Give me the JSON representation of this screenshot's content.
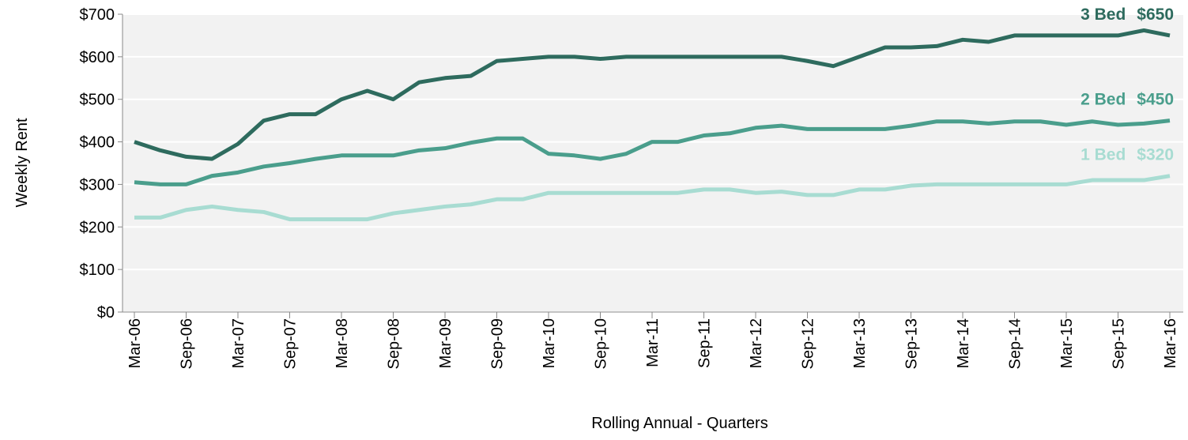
{
  "chart_data": {
    "type": "line",
    "x_label": "Rolling Annual - Quarters",
    "y_label": "Weekly Rent",
    "categories": [
      "Mar-06",
      null,
      "Sep-06",
      null,
      "Mar-07",
      null,
      "Sep-07",
      null,
      "Mar-08",
      null,
      "Sep-08",
      null,
      "Mar-09",
      null,
      "Sep-09",
      null,
      "Mar-10",
      null,
      "Sep-10",
      null,
      "Mar-11",
      null,
      "Sep-11",
      null,
      "Mar-12",
      null,
      "Sep-12",
      null,
      "Mar-13",
      null,
      "Sep-13",
      null,
      "Mar-14",
      null,
      "Sep-14",
      null,
      "Mar-15",
      null,
      "Sep-15",
      null,
      "Mar-16"
    ],
    "series": [
      {
        "name": "3 Bed",
        "color": "#2e6b5e",
        "values": [
          400,
          380,
          365,
          360,
          395,
          450,
          465,
          465,
          500,
          520,
          500,
          540,
          550,
          555,
          590,
          595,
          600,
          600,
          595,
          600,
          600,
          600,
          600,
          600,
          600,
          600,
          590,
          578,
          600,
          622,
          622,
          625,
          640,
          635,
          650,
          650,
          650,
          650,
          650,
          662,
          650
        ],
        "value_labels": [
          null,
          null,
          null,
          null,
          null,
          null,
          null,
          null,
          null,
          null,
          null,
          null,
          null,
          null,
          null,
          null,
          null,
          null,
          null,
          null,
          null,
          null,
          null,
          null,
          null,
          null,
          null,
          null,
          null,
          null,
          null,
          null,
          null,
          null,
          null,
          null,
          null,
          null,
          null,
          null,
          "$650"
        ]
      },
      {
        "name": "2 Bed",
        "color": "#4a9e8c",
        "values": [
          305,
          300,
          300,
          320,
          328,
          342,
          350,
          360,
          368,
          368,
          368,
          380,
          385,
          398,
          408,
          408,
          372,
          368,
          360,
          372,
          400,
          400,
          415,
          420,
          433,
          438,
          430,
          430,
          430,
          430,
          438,
          448,
          448,
          443,
          448,
          448,
          440,
          448,
          440,
          443,
          450
        ],
        "value_labels": [
          null,
          null,
          null,
          null,
          null,
          null,
          null,
          null,
          null,
          null,
          null,
          null,
          null,
          null,
          null,
          null,
          null,
          null,
          null,
          null,
          null,
          null,
          null,
          null,
          null,
          null,
          null,
          null,
          null,
          null,
          null,
          null,
          null,
          null,
          null,
          null,
          null,
          null,
          null,
          null,
          "$450"
        ]
      },
      {
        "name": "1 Bed",
        "color": "#a8dcd2",
        "values": [
          222,
          222,
          240,
          248,
          240,
          235,
          218,
          218,
          218,
          218,
          232,
          240,
          248,
          253,
          265,
          265,
          280,
          280,
          280,
          280,
          280,
          280,
          288,
          288,
          280,
          283,
          275,
          275,
          288,
          288,
          297,
          300,
          300,
          300,
          300,
          300,
          300,
          310,
          310,
          310,
          320
        ],
        "value_labels": [
          null,
          null,
          null,
          null,
          null,
          null,
          null,
          null,
          null,
          null,
          null,
          null,
          null,
          null,
          null,
          null,
          null,
          null,
          null,
          null,
          null,
          null,
          null,
          null,
          null,
          null,
          null,
          null,
          null,
          null,
          null,
          null,
          null,
          null,
          null,
          null,
          null,
          null,
          null,
          null,
          "$320"
        ]
      }
    ],
    "ylim": [
      0,
      700
    ],
    "yticks": [
      {
        "value": 0,
        "label": "$0"
      },
      {
        "value": 100,
        "label": "$100"
      },
      {
        "value": 200,
        "label": "$200"
      },
      {
        "value": 300,
        "label": "$300"
      },
      {
        "value": 400,
        "label": "$400"
      },
      {
        "value": 500,
        "label": "$500"
      },
      {
        "value": 600,
        "label": "$600"
      },
      {
        "value": 700,
        "label": "$700"
      }
    ],
    "grid": true
  }
}
